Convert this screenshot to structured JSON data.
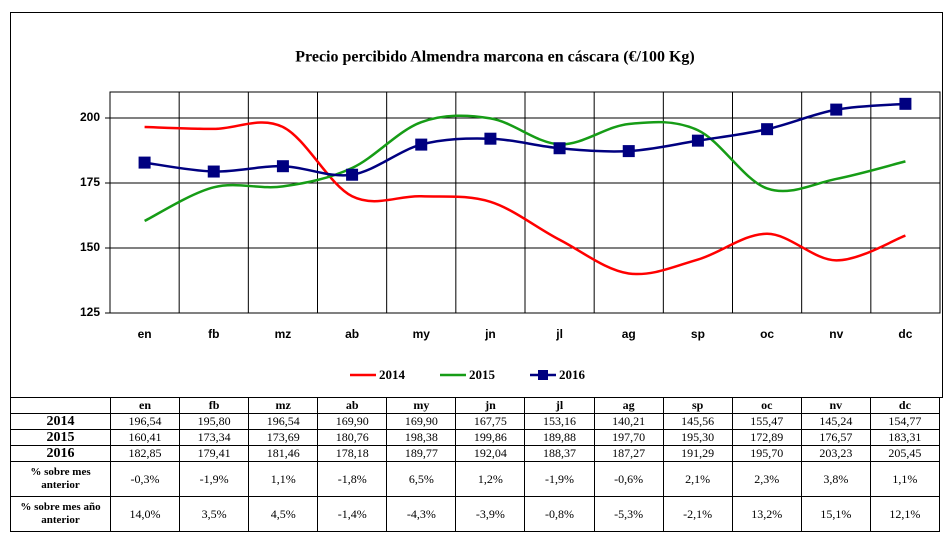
{
  "chart_data": {
    "type": "line",
    "title": "Precio percibido Almendra marcona en cáscara (€/100 Kg)",
    "categories": [
      "en",
      "fb",
      "mz",
      "ab",
      "my",
      "jn",
      "jl",
      "ag",
      "sp",
      "oc",
      "nv",
      "dc"
    ],
    "ylim": [
      125,
      210
    ],
    "yticks": [
      125,
      150,
      175,
      200
    ],
    "grid": true,
    "legend": "bottom",
    "series": [
      {
        "name": "2014",
        "color": "#ff0000",
        "marker": "none",
        "values": [
          196.54,
          195.8,
          196.54,
          169.9,
          169.9,
          167.75,
          153.16,
          140.21,
          145.56,
          155.47,
          145.24,
          154.77
        ],
        "value_labels": [
          "196,54",
          "195,80",
          "196,54",
          "169,90",
          "169,90",
          "167,75",
          "153,16",
          "140,21",
          "145,56",
          "155,47",
          "145,24",
          "154,77"
        ]
      },
      {
        "name": "2015",
        "color": "#169c16",
        "marker": "none",
        "values": [
          160.41,
          173.34,
          173.69,
          180.76,
          198.38,
          199.86,
          189.88,
          197.7,
          195.3,
          172.89,
          176.57,
          183.31
        ],
        "value_labels": [
          "160,41",
          "173,34",
          "173,69",
          "180,76",
          "198,38",
          "199,86",
          "189,88",
          "197,70",
          "195,30",
          "172,89",
          "176,57",
          "183,31"
        ]
      },
      {
        "name": "2016",
        "color": "#000080",
        "marker": "square",
        "values": [
          182.85,
          179.41,
          181.46,
          178.18,
          189.77,
          192.04,
          188.37,
          187.27,
          191.29,
          195.7,
          203.23,
          205.45
        ],
        "value_labels": [
          "182,85",
          "179,41",
          "181,46",
          "178,18",
          "189,77",
          "192,04",
          "188,37",
          "187,27",
          "191,29",
          "195,70",
          "203,23",
          "205,45"
        ]
      }
    ]
  },
  "table": {
    "rows": [
      {
        "label": "% sobre mes anterior",
        "values": [
          "-0,3%",
          "-1,9%",
          "1,1%",
          "-1,8%",
          "6,5%",
          "1,2%",
          "-1,9%",
          "-0,6%",
          "2,1%",
          "2,3%",
          "3,8%",
          "1,1%"
        ]
      },
      {
        "label": "% sobre mes año anterior",
        "values": [
          "14,0%",
          "3,5%",
          "4,5%",
          "-1,4%",
          "-4,3%",
          "-3,9%",
          "-0,8%",
          "-5,3%",
          "-2,1%",
          "13,2%",
          "15,1%",
          "12,1%"
        ]
      }
    ]
  }
}
